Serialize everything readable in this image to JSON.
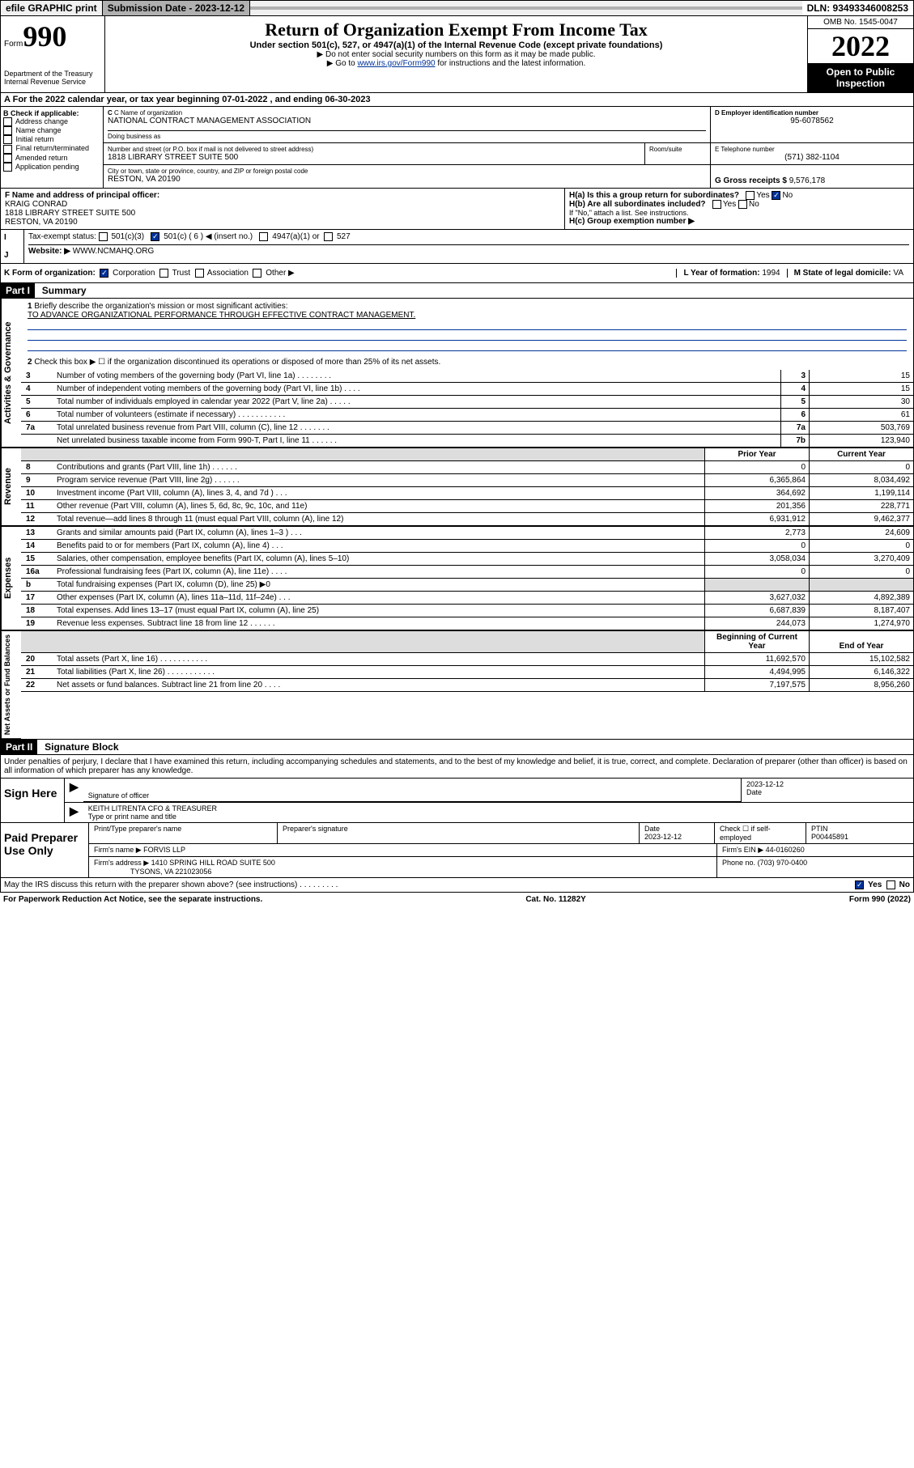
{
  "top": {
    "efile": "efile GRAPHIC print",
    "submission_label": "Submission Date - 2023-12-12",
    "dln_label": "DLN: 93493346008253"
  },
  "header": {
    "form_prefix": "Form",
    "form_num": "990",
    "dept": "Department of the Treasury",
    "irs": "Internal Revenue Service",
    "title": "Return of Organization Exempt From Income Tax",
    "sub1": "Under section 501(c), 527, or 4947(a)(1) of the Internal Revenue Code (except private foundations)",
    "sub2": "▶ Do not enter social security numbers on this form as it may be made public.",
    "sub3_pre": "▶ Go to ",
    "sub3_link": "www.irs.gov/Form990",
    "sub3_post": " for instructions and the latest information.",
    "omb": "OMB No. 1545-0047",
    "year": "2022",
    "open": "Open to Public Inspection"
  },
  "A": {
    "text_pre": "For the 2022 calendar year, or tax year beginning ",
    "begin": "07-01-2022",
    "mid": " , and ending ",
    "end": "06-30-2023"
  },
  "B": {
    "label": "B Check if applicable:",
    "items": [
      "Address change",
      "Name change",
      "Initial return",
      "Final return/terminated",
      "Amended return",
      "Application pending"
    ]
  },
  "C": {
    "name_label": "C Name of organization",
    "name": "NATIONAL CONTRACT MANAGEMENT ASSOCIATION",
    "dba_label": "Doing business as",
    "street_label": "Number and street (or P.O. box if mail is not delivered to street address)",
    "room_label": "Room/suite",
    "street": "1818 LIBRARY STREET SUITE 500",
    "city_label": "City or town, state or province, country, and ZIP or foreign postal code",
    "city": "RESTON, VA  20190"
  },
  "D": {
    "label": "D Employer identification number",
    "val": "95-6078562"
  },
  "E": {
    "label": "E Telephone number",
    "val": "(571) 382-1104"
  },
  "G": {
    "label": "G Gross receipts $",
    "val": "9,576,178"
  },
  "F": {
    "label": "F Name and address of principal officer:",
    "name": "KRAIG CONRAD",
    "addr1": "1818 LIBRARY STREET SUITE 500",
    "addr2": "RESTON, VA  20190"
  },
  "H": {
    "a": "H(a)  Is this a group return for subordinates?",
    "a_no": "No",
    "b": "H(b)  Are all subordinates included?",
    "b_note": "If \"No,\" attach a list. See instructions.",
    "c": "H(c)  Group exemption number ▶"
  },
  "I": {
    "label": "Tax-exempt status:",
    "opt1": "501(c)(3)",
    "opt2": "501(c) ( 6 ) ◀ (insert no.)",
    "opt3": "4947(a)(1) or",
    "opt4": "527"
  },
  "J": {
    "label": "Website: ▶",
    "val": "WWW.NCMAHQ.ORG"
  },
  "K": {
    "label": "K Form of organization:",
    "opts": [
      "Corporation",
      "Trust",
      "Association",
      "Other ▶"
    ]
  },
  "L": {
    "label": "L Year of formation:",
    "val": "1994"
  },
  "M": {
    "label": "M State of legal domicile:",
    "val": "VA"
  },
  "part1": {
    "tag": "Part I",
    "title": "Summary",
    "line1_label": "Briefly describe the organization's mission or most significant activities:",
    "mission": "TO ADVANCE ORGANIZATIONAL PERFORMANCE THROUGH EFFECTIVE CONTRACT MANAGEMENT.",
    "line2": "Check this box ▶ ☐  if the organization discontinued its operations or disposed of more than 25% of its net assets."
  },
  "sides": {
    "ag": "Activities & Governance",
    "rev": "Revenue",
    "exp": "Expenses",
    "na": "Net Assets or Fund Balances"
  },
  "gov_rows": [
    {
      "n": "3",
      "d": "Number of voting members of the governing body (Part VI, line 1a)   .    .    .    .    .    .    .    .",
      "box": "3",
      "v": "15"
    },
    {
      "n": "4",
      "d": "Number of independent voting members of the governing body (Part VI, line 1b)   .    .    .    .",
      "box": "4",
      "v": "15"
    },
    {
      "n": "5",
      "d": "Total number of individuals employed in calendar year 2022 (Part V, line 2a)   .    .    .    .    .",
      "box": "5",
      "v": "30"
    },
    {
      "n": "6",
      "d": "Total number of volunteers (estimate if necessary)    .    .    .    .    .    .    .    .    .    .    .",
      "box": "6",
      "v": "61"
    },
    {
      "n": "7a",
      "d": "Total unrelated business revenue from Part VIII, column (C), line 12    .    .    .    .    .    .    .",
      "box": "7a",
      "v": "503,769"
    },
    {
      "n": "",
      "d": "Net unrelated business taxable income from Form 990-T, Part I, line 11    .    .    .    .    .    .",
      "box": "7b",
      "v": "123,940"
    }
  ],
  "twocol_headers": {
    "prior": "Prior Year",
    "current": "Current Year"
  },
  "rev_rows": [
    {
      "n": "8",
      "d": "Contributions and grants (Part VIII, line 1h)    .    .    .    .    .    .",
      "p": "0",
      "c": "0"
    },
    {
      "n": "9",
      "d": "Program service revenue (Part VIII, line 2g)    .    .    .    .    .    .",
      "p": "6,365,864",
      "c": "8,034,492"
    },
    {
      "n": "10",
      "d": "Investment income (Part VIII, column (A), lines 3, 4, and 7d )    .    .    .",
      "p": "364,692",
      "c": "1,199,114"
    },
    {
      "n": "11",
      "d": "Other revenue (Part VIII, column (A), lines 5, 6d, 8c, 9c, 10c, and 11e)",
      "p": "201,356",
      "c": "228,771"
    },
    {
      "n": "12",
      "d": "Total revenue—add lines 8 through 11 (must equal Part VIII, column (A), line 12)",
      "p": "6,931,912",
      "c": "9,462,377"
    }
  ],
  "exp_rows": [
    {
      "n": "13",
      "d": "Grants and similar amounts paid (Part IX, column (A), lines 1–3 )   .    .    .",
      "p": "2,773",
      "c": "24,609"
    },
    {
      "n": "14",
      "d": "Benefits paid to or for members (Part IX, column (A), line 4)    .    .    .",
      "p": "0",
      "c": "0"
    },
    {
      "n": "15",
      "d": "Salaries, other compensation, employee benefits (Part IX, column (A), lines 5–10)",
      "p": "3,058,034",
      "c": "3,270,409"
    },
    {
      "n": "16a",
      "d": "Professional fundraising fees (Part IX, column (A), line 11e)    .    .    .    .",
      "p": "0",
      "c": "0"
    },
    {
      "n": "b",
      "d": "Total fundraising expenses (Part IX, column (D), line 25) ▶0",
      "p": "",
      "c": "",
      "shaded": true
    },
    {
      "n": "17",
      "d": "Other expenses (Part IX, column (A), lines 11a–11d, 11f–24e)    .    .    .",
      "p": "3,627,032",
      "c": "4,892,389"
    },
    {
      "n": "18",
      "d": "Total expenses. Add lines 13–17 (must equal Part IX, column (A), line 25)",
      "p": "6,687,839",
      "c": "8,187,407"
    },
    {
      "n": "19",
      "d": "Revenue less expenses. Subtract line 18 from line 12    .    .    .    .    .    .",
      "p": "244,073",
      "c": "1,274,970"
    }
  ],
  "na_headers": {
    "beg": "Beginning of Current Year",
    "end": "End of Year"
  },
  "na_rows": [
    {
      "n": "20",
      "d": "Total assets (Part X, line 16)    .    .    .    .    .    .    .    .    .    .    .",
      "p": "11,692,570",
      "c": "15,102,582"
    },
    {
      "n": "21",
      "d": "Total liabilities (Part X, line 26)   .    .    .    .    .    .    .    .    .    .    .",
      "p": "4,494,995",
      "c": "6,146,322"
    },
    {
      "n": "22",
      "d": "Net assets or fund balances. Subtract line 21 from line 20    .    .    .    .",
      "p": "7,197,575",
      "c": "8,956,260"
    }
  ],
  "part2": {
    "tag": "Part II",
    "title": "Signature Block",
    "perjury": "Under penalties of perjury, I declare that I have examined this return, including accompanying schedules and statements, and to the best of my knowledge and belief, it is true, correct, and complete. Declaration of preparer (other than officer) is based on all information of which preparer has any knowledge."
  },
  "sign": {
    "here": "Sign Here",
    "sig_officer": "Signature of officer",
    "date": "2023-12-12",
    "date_label": "Date",
    "name": "KEITH LITRENTA CFO & TREASURER",
    "name_label": "Type or print name and title"
  },
  "paid": {
    "label": "Paid Preparer Use Only",
    "print_label": "Print/Type preparer's name",
    "sig_label": "Preparer's signature",
    "date_label": "Date",
    "date": "2023-12-12",
    "check_label": "Check ☐ if self-employed",
    "ptin_label": "PTIN",
    "ptin": "P00445891",
    "firm_name_label": "Firm's name    ▶",
    "firm_name": "FORVIS LLP",
    "firm_ein_label": "Firm's EIN ▶",
    "firm_ein": "44-0160260",
    "firm_addr_label": "Firm's address ▶",
    "firm_addr1": "1410 SPRING HILL ROAD SUITE 500",
    "firm_addr2": "TYSONS, VA  221023056",
    "phone_label": "Phone no.",
    "phone": "(703) 970-0400"
  },
  "may_discuss": "May the IRS discuss this return with the preparer shown above? (see instructions)    .    .    .    .    .    .    .    .    .",
  "may_yes": "Yes",
  "may_no": "No",
  "footer": {
    "pra": "For Paperwork Reduction Act Notice, see the separate instructions.",
    "cat": "Cat. No. 11282Y",
    "form": "Form 990 (2022)"
  }
}
